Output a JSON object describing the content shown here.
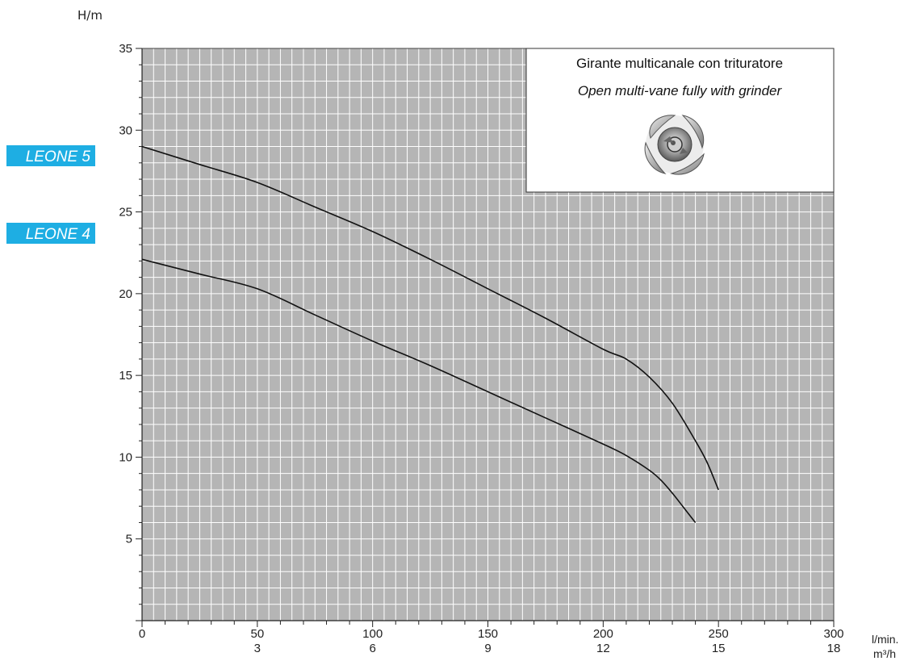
{
  "chart_data": {
    "type": "line",
    "ylabel": "H/m",
    "xlabel_primary": "l/min.",
    "xlabel_secondary": "m³/h",
    "xlim": [
      0,
      300
    ],
    "ylim": [
      0,
      35
    ],
    "grid": true,
    "x_ticks_primary": [
      "0",
      "50",
      "100",
      "150",
      "200",
      "250",
      "300"
    ],
    "x_ticks_secondary": [
      "3",
      "6",
      "9",
      "12",
      "15",
      "18"
    ],
    "y_ticks": [
      "5",
      "10",
      "15",
      "20",
      "25",
      "30",
      "35"
    ],
    "series": [
      {
        "name": "LEONE 5",
        "x": [
          0,
          25,
          50,
          75,
          100,
          125,
          150,
          175,
          200,
          210,
          220,
          230,
          240,
          245,
          250
        ],
        "y": [
          29,
          27.9,
          26.8,
          25.3,
          23.8,
          22.1,
          20.3,
          18.5,
          16.6,
          16.0,
          14.9,
          13.3,
          11.0,
          9.7,
          8.0
        ]
      },
      {
        "name": "LEONE 4",
        "x": [
          0,
          25,
          50,
          75,
          100,
          125,
          150,
          175,
          200,
          210,
          220,
          225,
          230,
          235,
          240
        ],
        "y": [
          22.1,
          21.2,
          20.3,
          18.7,
          17.1,
          15.6,
          14.0,
          12.4,
          10.8,
          10.1,
          9.2,
          8.6,
          7.8,
          6.9,
          6.0
        ]
      }
    ],
    "legend_color": "#1eaee3",
    "plot_background": "#b5b5b5",
    "grid_color": "#ffffff",
    "line_color": "#111111",
    "annotation_box": {
      "title": "Girante multicanale con trituratore",
      "subtitle": "Open multi-vane fully with grinder",
      "placement": "top-right",
      "icon": "impeller-icon"
    }
  }
}
